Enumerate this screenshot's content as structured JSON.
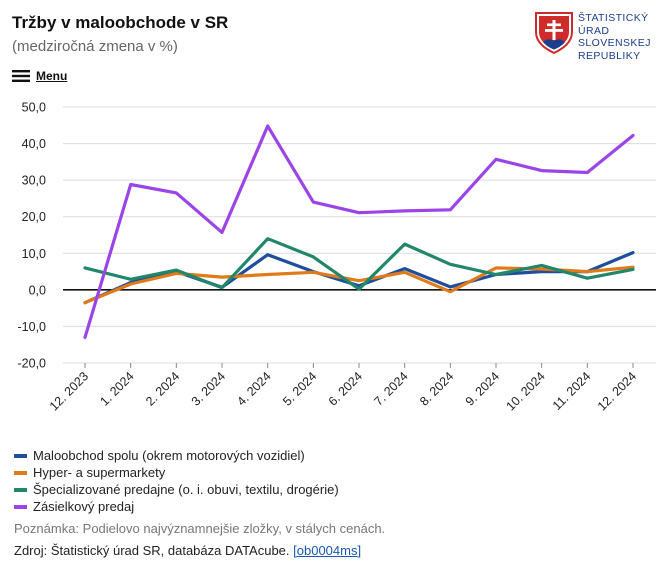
{
  "header": {
    "title": "Tržby v maloobchode v SR",
    "subtitle": "(medziročná zmena v %)"
  },
  "logo": {
    "lines": [
      "ŠTATISTICKÝ",
      "ÚRAD",
      "SLOVENSKEJ",
      "REPUBLIKY"
    ]
  },
  "menu": {
    "label": "Menu",
    "icon": "hamburger-icon"
  },
  "chart_data": {
    "type": "line",
    "categories": [
      "12. 2023",
      "1. 2024",
      "2. 2024",
      "3. 2024",
      "4. 2024",
      "5. 2024",
      "6. 2024",
      "7. 2024",
      "8. 2024",
      "9. 2024",
      "10. 2024",
      "11. 2024",
      "12. 2024"
    ],
    "y_ticks": [
      "50,0",
      "40,0",
      "30,0",
      "20,0",
      "10,0",
      "0,0",
      "-10,0",
      "-20,0"
    ],
    "ylim": [
      -20,
      50
    ],
    "grid": true,
    "legend_position": "bottom",
    "series": [
      {
        "name": "Maloobchod spolu (okrem motorových vozidiel)",
        "color": "#1f4e9c",
        "values": [
          -3.5,
          2.0,
          5.0,
          0.7,
          9.6,
          5.0,
          1.1,
          5.8,
          0.8,
          4.2,
          5.0,
          5.0,
          10.2
        ]
      },
      {
        "name": "Hyper- a supermarkety",
        "color": "#e07b1a",
        "values": [
          -3.5,
          1.6,
          4.5,
          3.5,
          4.2,
          4.8,
          2.5,
          4.8,
          -0.5,
          6.0,
          5.7,
          5.0,
          6.2
        ]
      },
      {
        "name": "Špecializované predajne (o. i. obuvi, textilu, drogérie)",
        "color": "#22876a",
        "values": [
          6.0,
          2.9,
          5.4,
          0.6,
          14.0,
          9.0,
          0.2,
          12.5,
          7.0,
          4.2,
          6.7,
          3.2,
          5.6
        ]
      },
      {
        "name": "Zásielkový predaj",
        "color": "#9b45e8",
        "values": [
          -13.0,
          28.8,
          26.5,
          15.7,
          44.8,
          24.0,
          21.1,
          21.6,
          21.9,
          35.7,
          32.6,
          32.1,
          42.2
        ]
      }
    ]
  },
  "footer": {
    "note": "Poznámka: Podielovo najvýznamnejšie zložky, v stálych cenách.",
    "source_prefix": "Zdroj: Štatistický úrad SR, databáza DATAcube. ",
    "source_link": "[ob0004ms]"
  }
}
